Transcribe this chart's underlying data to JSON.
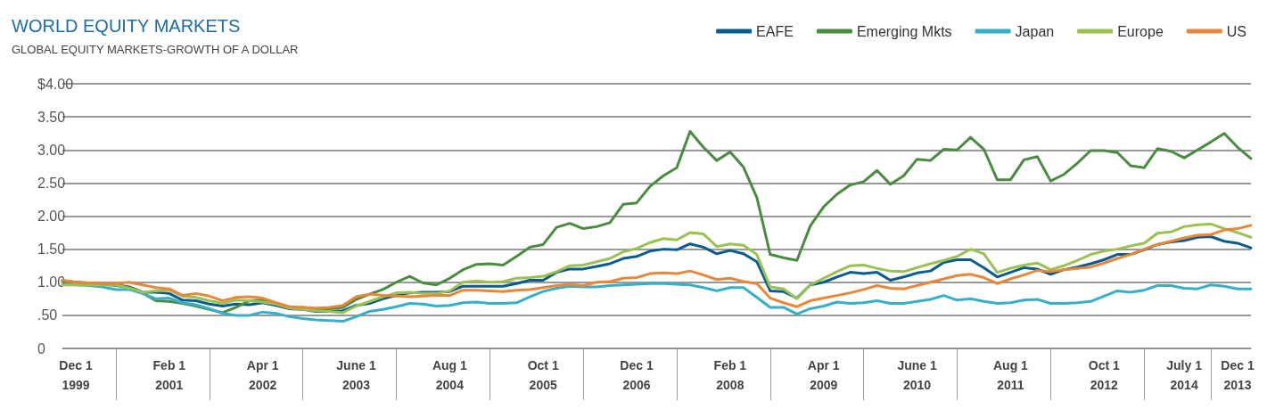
{
  "chart_data": {
    "type": "line",
    "title": "WORLD EQUITY MARKETS",
    "subtitle": "GLOBAL EQUITY MARKETS-GROWTH OF A DOLLAR",
    "categories": [
      null,
      "Dec 1\n1999",
      null,
      null,
      null,
      null,
      null,
      null,
      "Feb 1\n2001",
      null,
      null,
      null,
      null,
      null,
      null,
      "Apr 1\n2002",
      null,
      null,
      null,
      null,
      null,
      null,
      "June 1\n2003",
      null,
      null,
      null,
      null,
      null,
      null,
      "Aug 1\n2004",
      null,
      null,
      null,
      null,
      null,
      null,
      "Oct 1\n2005",
      null,
      null,
      null,
      null,
      null,
      null,
      "Dec 1\n2006",
      null,
      null,
      null,
      null,
      null,
      null,
      "Feb 1\n2008",
      null,
      null,
      null,
      null,
      null,
      null,
      "Apr 1\n2009",
      null,
      null,
      null,
      null,
      null,
      null,
      "June 1\n2010",
      null,
      null,
      null,
      null,
      null,
      null,
      "Aug 1\n2011",
      null,
      null,
      null,
      null,
      null,
      null,
      "Oct 1\n2012",
      null,
      null,
      null,
      null,
      null,
      "July 1\n2014",
      null,
      null,
      null,
      "Dec 1\n2013",
      null
    ],
    "series": [
      {
        "name": "EAFE",
        "color": "#0b5c8e",
        "values": [
          1.02,
          1.0,
          0.98,
          0.97,
          0.96,
          0.93,
          0.85,
          0.85,
          0.83,
          0.73,
          0.72,
          0.67,
          0.64,
          0.67,
          0.66,
          0.69,
          0.65,
          0.6,
          0.59,
          0.56,
          0.56,
          0.57,
          0.65,
          0.68,
          0.75,
          0.8,
          0.84,
          0.85,
          0.85,
          0.86,
          0.94,
          0.94,
          0.94,
          0.94,
          0.98,
          1.03,
          1.03,
          1.15,
          1.2,
          1.2,
          1.24,
          1.28,
          1.36,
          1.39,
          1.47,
          1.5,
          1.49,
          1.58,
          1.53,
          1.43,
          1.48,
          1.43,
          1.31,
          0.87,
          0.86,
          0.76,
          0.96,
          1.0,
          1.08,
          1.15,
          1.13,
          1.15,
          1.03,
          1.08,
          1.14,
          1.17,
          1.3,
          1.34,
          1.34,
          1.22,
          1.08,
          1.15,
          1.22,
          1.2,
          1.12,
          1.19,
          1.23,
          1.28,
          1.34,
          1.42,
          1.42,
          1.49,
          1.57,
          1.61,
          1.63,
          1.68,
          1.69,
          1.62,
          1.59,
          1.52
        ]
      },
      {
        "name": "Emerging Mkts",
        "color": "#4a8c3f",
        "values": [
          1.02,
          1.0,
          0.99,
          0.97,
          0.95,
          0.92,
          0.84,
          0.72,
          0.71,
          0.68,
          0.64,
          0.59,
          0.54,
          0.62,
          0.72,
          0.73,
          0.67,
          0.61,
          0.62,
          0.6,
          0.6,
          0.62,
          0.74,
          0.82,
          0.89,
          1.0,
          1.09,
          0.99,
          0.96,
          1.06,
          1.19,
          1.27,
          1.28,
          1.26,
          1.39,
          1.53,
          1.57,
          1.83,
          1.89,
          1.81,
          1.84,
          1.9,
          2.18,
          2.2,
          2.45,
          2.61,
          2.73,
          3.28,
          3.04,
          2.84,
          2.97,
          2.74,
          2.28,
          1.42,
          1.37,
          1.33,
          1.85,
          2.14,
          2.33,
          2.47,
          2.52,
          2.69,
          2.48,
          2.61,
          2.86,
          2.84,
          3.01,
          3.0,
          3.19,
          3.01,
          2.55,
          2.55,
          2.85,
          2.9,
          2.53,
          2.63,
          2.8,
          2.99,
          2.99,
          2.96,
          2.76,
          2.73,
          3.02,
          2.98,
          2.88,
          3.0,
          3.12,
          3.25,
          3.04,
          2.87
        ]
      },
      {
        "name": "Japan",
        "color": "#36b0c9",
        "values": [
          0.97,
          0.96,
          0.95,
          0.93,
          0.89,
          0.89,
          0.83,
          0.75,
          0.76,
          0.69,
          0.66,
          0.6,
          0.53,
          0.5,
          0.5,
          0.55,
          0.53,
          0.48,
          0.45,
          0.43,
          0.42,
          0.41,
          0.48,
          0.56,
          0.59,
          0.63,
          0.68,
          0.67,
          0.64,
          0.65,
          0.69,
          0.7,
          0.68,
          0.68,
          0.69,
          0.78,
          0.86,
          0.91,
          0.94,
          0.93,
          0.93,
          0.95,
          0.96,
          0.97,
          0.98,
          0.98,
          0.97,
          0.96,
          0.92,
          0.87,
          0.92,
          0.92,
          0.77,
          0.62,
          0.62,
          0.52,
          0.6,
          0.64,
          0.7,
          0.68,
          0.69,
          0.72,
          0.68,
          0.68,
          0.71,
          0.74,
          0.8,
          0.73,
          0.75,
          0.71,
          0.68,
          0.69,
          0.73,
          0.74,
          0.68,
          0.68,
          0.69,
          0.71,
          0.79,
          0.87,
          0.85,
          0.88,
          0.95,
          0.95,
          0.91,
          0.9,
          0.96,
          0.94,
          0.9,
          0.9
        ]
      },
      {
        "name": "Europe",
        "color": "#9bc153",
        "values": [
          0.96,
          0.96,
          0.96,
          0.96,
          0.96,
          0.91,
          0.85,
          0.87,
          0.88,
          0.79,
          0.77,
          0.72,
          0.68,
          0.73,
          0.72,
          0.7,
          0.67,
          0.61,
          0.59,
          0.57,
          0.56,
          0.54,
          0.64,
          0.71,
          0.78,
          0.84,
          0.85,
          0.83,
          0.83,
          0.87,
          1.0,
          1.02,
          1.0,
          1.01,
          1.06,
          1.07,
          1.09,
          1.16,
          1.25,
          1.26,
          1.31,
          1.36,
          1.46,
          1.51,
          1.6,
          1.66,
          1.64,
          1.75,
          1.73,
          1.54,
          1.58,
          1.56,
          1.42,
          0.93,
          0.9,
          0.75,
          0.96,
          1.06,
          1.16,
          1.25,
          1.26,
          1.21,
          1.17,
          1.16,
          1.22,
          1.28,
          1.33,
          1.39,
          1.5,
          1.43,
          1.15,
          1.21,
          1.26,
          1.29,
          1.19,
          1.25,
          1.33,
          1.42,
          1.47,
          1.5,
          1.55,
          1.59,
          1.74,
          1.76,
          1.84,
          1.87,
          1.88,
          1.81,
          1.75,
          1.68
        ]
      },
      {
        "name": "US",
        "color": "#e8873a",
        "values": [
          1.03,
          1.0,
          0.99,
          0.98,
          0.98,
          1.0,
          0.96,
          0.92,
          0.9,
          0.8,
          0.83,
          0.79,
          0.72,
          0.77,
          0.78,
          0.76,
          0.69,
          0.63,
          0.62,
          0.61,
          0.62,
          0.65,
          0.78,
          0.82,
          0.8,
          0.79,
          0.78,
          0.79,
          0.8,
          0.8,
          0.88,
          0.88,
          0.87,
          0.86,
          0.88,
          0.89,
          0.92,
          0.95,
          0.97,
          0.95,
          1.0,
          1.01,
          1.06,
          1.07,
          1.13,
          1.14,
          1.13,
          1.17,
          1.11,
          1.04,
          1.06,
          1.01,
          0.98,
          0.76,
          0.69,
          0.63,
          0.72,
          0.76,
          0.8,
          0.84,
          0.89,
          0.95,
          0.91,
          0.9,
          0.95,
          1.0,
          1.05,
          1.1,
          1.12,
          1.07,
          0.98,
          1.05,
          1.11,
          1.18,
          1.16,
          1.19,
          1.21,
          1.23,
          1.29,
          1.36,
          1.42,
          1.5,
          1.57,
          1.62,
          1.67,
          1.71,
          1.72,
          1.79,
          1.81,
          1.86
        ]
      }
    ],
    "ylim": [
      0,
      4
    ],
    "yticks": [
      0,
      {
        "value": 0.5,
        "label": ".50"
      },
      {
        "value": 1,
        "label": "1.00"
      },
      {
        "value": 1.5,
        "label": "1.50"
      },
      {
        "value": 2,
        "label": "2.00"
      },
      {
        "value": 2.5,
        "label": "2.50"
      },
      {
        "value": 3,
        "label": "3.00"
      },
      {
        "value": 3.5,
        "label": "3.50"
      },
      {
        "value": 4,
        "label": "$4.00"
      }
    ],
    "grid": "y",
    "legend": "top right",
    "marker": "none",
    "line_style": "solid"
  }
}
